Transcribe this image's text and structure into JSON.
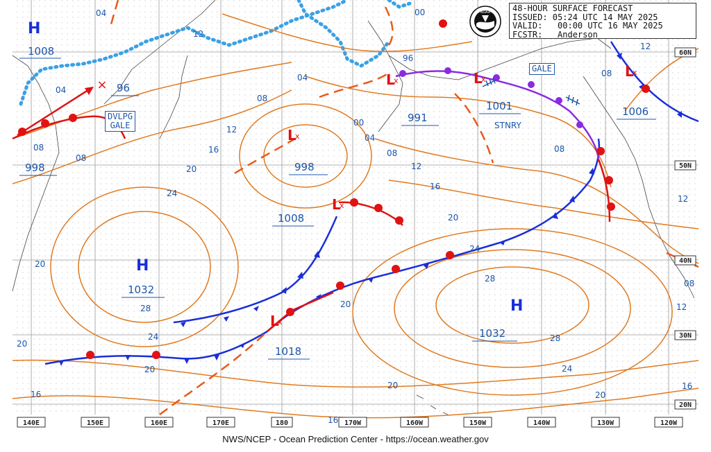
{
  "header": {
    "title": "48-HOUR SURFACE FORECAST",
    "issued": "ISSUED: 05:24 UTC 14 MAY 2025",
    "valid": "VALID:   00:00 UTC 16 MAY 2025",
    "forecaster": "FCSTR:   Anderson"
  },
  "logo_label": "NOAA",
  "credit": "NWS/NCEP - Ocean Prediction Center - https://ocean.weather.gov",
  "longitude_labels": [
    "140E",
    "150E",
    "160E",
    "170E",
    "180",
    "170W",
    "160W",
    "150W",
    "140W",
    "130W",
    "120W"
  ],
  "latitude_labels": [
    "60N",
    "50N",
    "40N",
    "30N",
    "20N"
  ],
  "pressure_centers": [
    {
      "type": "H",
      "value": "1008"
    },
    {
      "type": "H",
      "value": "1032"
    },
    {
      "type": "H",
      "value": "1032"
    },
    {
      "type": "L",
      "value": "998"
    },
    {
      "type": "L",
      "value": "998"
    },
    {
      "type": "L",
      "value": "991"
    },
    {
      "type": "L",
      "value": "1001"
    },
    {
      "type": "L",
      "value": "1006"
    },
    {
      "type": "L",
      "value": "1008"
    },
    {
      "type": "L",
      "value": "1018"
    },
    {
      "type": "L",
      "value": "96"
    }
  ],
  "warnings": [
    {
      "text_1": "DVLPG",
      "text_2": "GALE"
    },
    {
      "text_1": "GALE"
    }
  ],
  "annotations": {
    "stnry": "STNRY"
  },
  "isobar_labels": [
    "04",
    "08",
    "12",
    "16",
    "20",
    "24",
    "28",
    "00",
    "96"
  ],
  "colors": {
    "isobar": "#e07a1f",
    "cold_front": "#1a2fd9",
    "warm_front": "#e01212",
    "occluded": "#8a2be2",
    "text": "#1b55a8",
    "ice": "#3aa0e6",
    "grid": "#999999"
  }
}
